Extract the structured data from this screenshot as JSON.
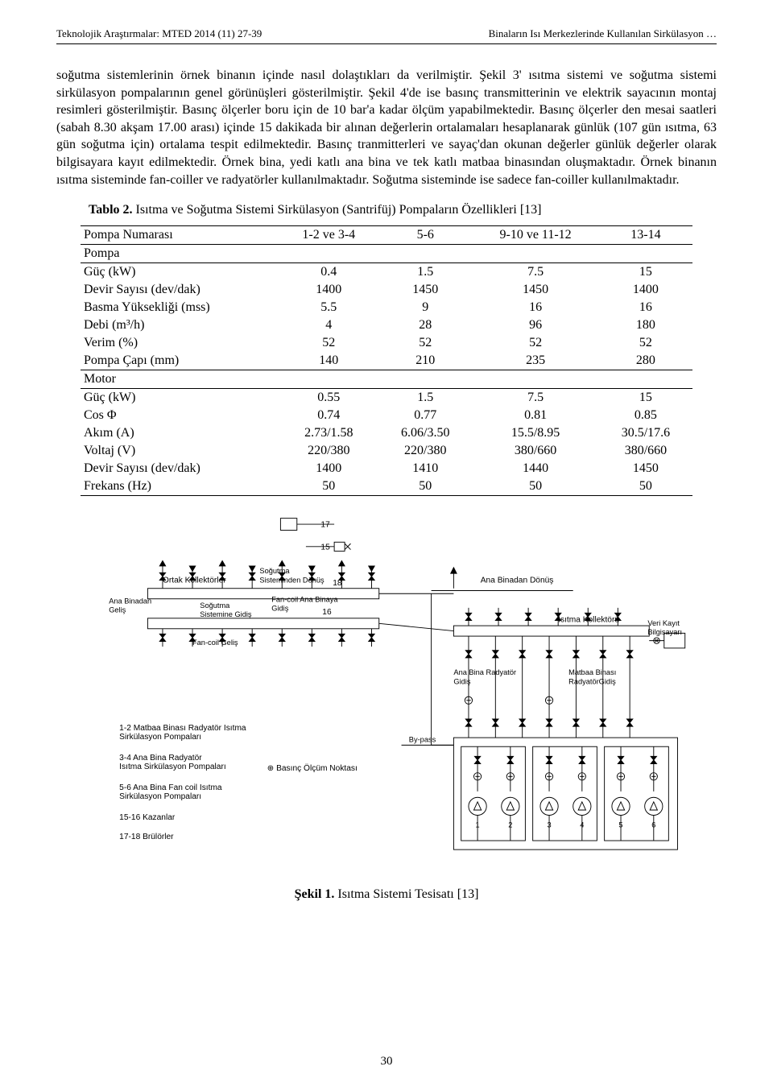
{
  "header": {
    "left": "Teknolojik Araştırmalar: MTED 2014 (11) 27-39",
    "right": "Binaların Isı Merkezlerinde Kullanılan Sirkülasyon …"
  },
  "paragraph": "soğutma sistemlerinin örnek binanın içinde nasıl dolaştıkları da verilmiştir. Şekil 3' ısıtma sistemi ve soğutma sistemi sirkülasyon pompalarının genel görünüşleri gösterilmiştir. Şekil 4'de ise basınç transmitterinin ve elektrik sayacının montaj resimleri gösterilmiştir. Basınç ölçerler boru için de 10 bar'a kadar ölçüm yapabilmektedir. Basınç ölçerler den mesai saatleri (sabah 8.30 akşam 17.00 arası) içinde 15 dakikada bir alınan değerlerin ortalamaları hesaplanarak günlük (107 gün ısıtma, 63 gün soğutma için) ortalama tespit edilmektedir. Basınç tranmitterleri ve sayaç'dan okunan değerler günlük değerler olarak bilgisayara kayıt edilmektedir. Örnek bina, yedi katlı ana bina ve tek katlı matbaa binasından oluşmaktadır. Örnek binanın ısıtma sisteminde fan-coiller ve radyatörler kullanılmaktadır. Soğutma sisteminde ise sadece fan-coiller kullanılmaktadır.",
  "table": {
    "caption_label": "Tablo 2.",
    "caption_text": "Isıtma ve Soğutma Sistemi Sirkülasyon (Santrifüj) Pompaların Özellikleri [13]",
    "col_headers": [
      "Pompa Numarası",
      "1-2 ve 3-4",
      "5-6",
      "9-10 ve 11-12",
      "13-14"
    ],
    "section_pompa": "Pompa",
    "section_motor": "Motor",
    "pompa_rows": [
      {
        "label": "Güç (kW)",
        "c": [
          "0.4",
          "1.5",
          "7.5",
          "15"
        ]
      },
      {
        "label": "Devir Sayısı (dev/dak)",
        "c": [
          "1400",
          "1450",
          "1450",
          "1400"
        ]
      },
      {
        "label": "Basma Yüksekliği (mss)",
        "c": [
          "5.5",
          "9",
          "16",
          "16"
        ]
      },
      {
        "label": "Debi (m³/h)",
        "c": [
          "4",
          "28",
          "96",
          "180"
        ]
      },
      {
        "label": "Verim (%)",
        "c": [
          "52",
          "52",
          "52",
          "52"
        ]
      },
      {
        "label": "Pompa Çapı (mm)",
        "c": [
          "140",
          "210",
          "235",
          "280"
        ]
      }
    ],
    "motor_rows": [
      {
        "label": "Güç (kW)",
        "c": [
          "0.55",
          "1.5",
          "7.5",
          "15"
        ]
      },
      {
        "label": "Cos Φ",
        "c": [
          "0.74",
          "0.77",
          "0.81",
          "0.85"
        ]
      },
      {
        "label": "Akım (A)",
        "c": [
          "2.73/1.58",
          "6.06/3.50",
          "15.5/8.95",
          "30.5/17.6"
        ]
      },
      {
        "label": "Voltaj (V)",
        "c": [
          "220/380",
          "220/380",
          "380/660",
          "380/660"
        ]
      },
      {
        "label": "Devir Sayısı (dev/dak)",
        "c": [
          "1400",
          "1410",
          "1440",
          "1450"
        ]
      },
      {
        "label": "Frekans (Hz)",
        "c": [
          "50",
          "50",
          "50",
          "50"
        ]
      }
    ]
  },
  "figure": {
    "caption_label": "Şekil 1.",
    "caption_text": "Isıtma Sistemi Tesisatı [13]",
    "labels": {
      "ortak_kollektorler": "Ortak Kollektörler",
      "ana_binadan_gelis": "Ana Binadan\nGeliş",
      "sogutma_sistemine_gidis": "Soğutma\nSistemine Gidiş",
      "sogutma_sisteminden_donus": "Soğutma\nSisteminden Dönüş",
      "fancoil_gelis": "Fan-coil Geliş",
      "fancoil_ana_binaya_gidis": "Fan-coil Ana Binaya\nGidiş",
      "ana_binadan_donus": "Ana Binadan Dönüş",
      "isitma_kollektoru": "Isıtma Kollektörü",
      "veri_kayit_bilgisayari": "Veri Kayıt\nBilgisayarı",
      "ana_bina_radyator_gidis": "Ana Bina Radyatör\nGidiş",
      "matbaa_binasi_radyator_gidis": "Matbaa Binası\nRadyatörGidiş",
      "bypass": "By-pass",
      "legend1": "1-2 Matbaa Binası Radyatör Isıtma\nSirkülasyon Pompaları",
      "legend2": "3-4 Ana Bina Radyatör\nIsıtma Sirkülasyon Pompaları",
      "legend3": "5-6 Ana Bina Fan coil Isıtma\nSirkülasyon Pompaları",
      "legend4": "15-16 Kazanlar",
      "legend5": "17-18 Brülörler",
      "basinc_olcum": "⊕ Basınç Ölçüm Noktası",
      "n15": "15",
      "n16": "16",
      "n17": "17",
      "n18": "18",
      "p1": "1",
      "p2": "2",
      "p3": "3",
      "p4": "4",
      "p5": "5",
      "p6": "6"
    },
    "style": {
      "stroke": "#000000",
      "stroke_width": 1,
      "font_size_small": 10,
      "font_size_med": 11,
      "background": "#ffffff"
    }
  },
  "footer": {
    "page": "30"
  }
}
